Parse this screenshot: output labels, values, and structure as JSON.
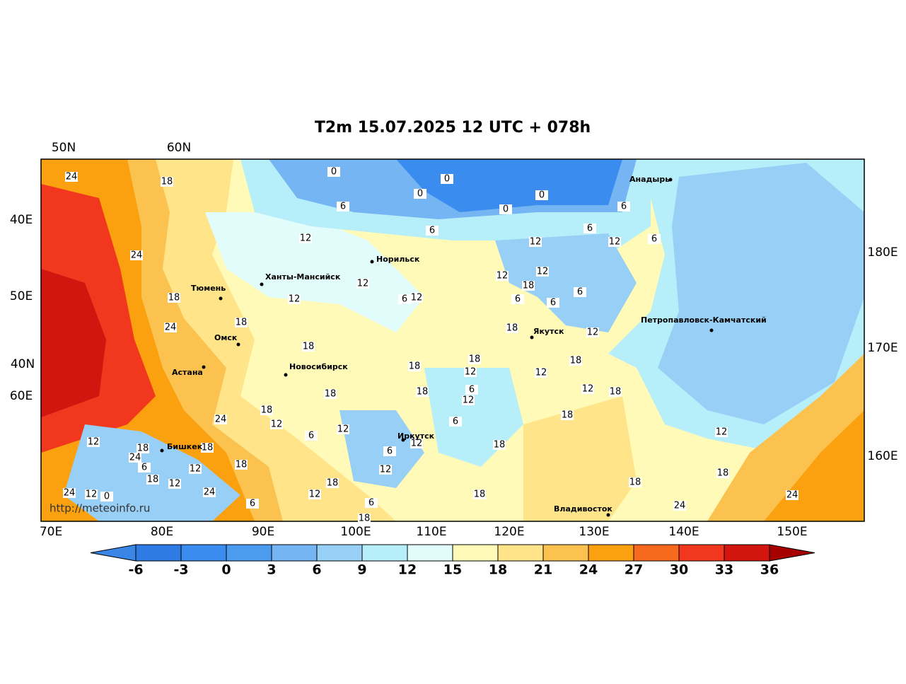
{
  "title": "T2m 15.07.2025 12 UTC + 078h",
  "watermark": "http://meteoinfo.ru",
  "lat_labels_top": [
    "50N",
    "60N"
  ],
  "lat_labels_left": [
    "40E",
    "50E",
    "40N",
    "60E"
  ],
  "lat_labels_right": [
    "180E",
    "170E",
    "160E"
  ],
  "lon_labels_bottom": [
    "70E",
    "80E",
    "90E",
    "100E",
    "110E",
    "120E",
    "130E",
    "140E",
    "150E"
  ],
  "cities": [
    "Анадырь",
    "Норильск",
    "Ханты-Мансийск",
    "Тюмень",
    "Омск",
    "Астана",
    "Новосибирск",
    "Якутск",
    "Петропавловск-Камчатский",
    "Бишкек",
    "Иркутск",
    "Владивосток"
  ],
  "contour_labels": [
    24,
    18,
    0,
    0,
    0,
    0,
    0,
    6,
    6,
    6,
    6,
    6,
    12,
    12,
    12,
    24,
    12,
    12,
    18,
    6,
    6,
    6,
    12,
    12,
    6,
    12,
    18,
    24,
    18,
    18,
    12,
    18,
    18,
    18,
    12,
    12,
    18,
    6,
    12,
    18,
    18,
    18,
    12,
    18,
    24,
    12,
    12,
    18,
    6,
    6,
    12,
    12,
    18,
    18,
    24,
    6,
    12,
    18,
    6,
    18,
    12,
    12,
    18,
    18,
    12,
    18,
    24,
    12,
    0,
    24,
    18,
    12,
    18,
    24,
    6,
    6,
    24,
    18
  ],
  "colorbar": {
    "ticks": [
      -6,
      -3,
      0,
      3,
      6,
      9,
      12,
      15,
      18,
      21,
      24,
      27,
      30,
      33,
      36
    ],
    "colors": [
      "#3a86e6",
      "#2e7be4",
      "#3a8cee",
      "#4b9cf0",
      "#76b5f4",
      "#98cff6",
      "#b6eff9",
      "#e2fcfc",
      "#fffab8",
      "#ffe489",
      "#fcc24f",
      "#fba10f",
      "#f76a1e",
      "#f2371f",
      "#d2150f",
      "#a60000"
    ]
  }
}
